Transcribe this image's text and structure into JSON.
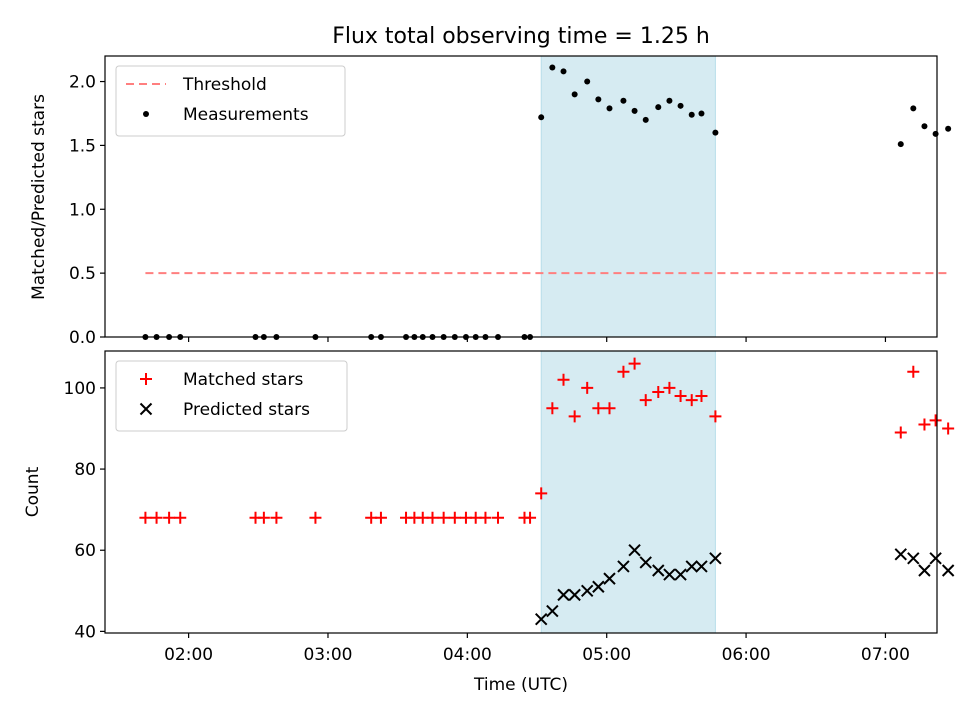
{
  "chart_data": [
    {
      "type": "scatter",
      "title": "Flux total observing time = 1.25 h",
      "xlabel": "",
      "ylabel": "Matched/Predicted stars",
      "xlim": [
        1.4,
        7.37
      ],
      "ylim": [
        0.0,
        2.2
      ],
      "yticks": [
        0.0,
        0.5,
        1.0,
        1.5,
        2.0
      ],
      "ytick_labels": [
        "0.0",
        "0.5",
        "1.0",
        "1.5",
        "2.0"
      ],
      "xticks": [
        2,
        3,
        4,
        5,
        6,
        7
      ],
      "show_xtick_labels": false,
      "grid": false,
      "legend_position": "top-left",
      "highlight_band": {
        "x_start": 4.53,
        "x_end": 5.78,
        "color": "#add8e6"
      },
      "series": [
        {
          "name": "Threshold",
          "kind": "dashed-line",
          "color": "#ff7f7f",
          "x": [
            1.69,
            7.47
          ],
          "y": [
            0.5,
            0.5
          ]
        },
        {
          "name": "Measurements",
          "kind": "dot",
          "color": "#000000",
          "x": [
            1.69,
            1.77,
            1.86,
            1.94,
            2.48,
            2.54,
            2.63,
            2.91,
            3.31,
            3.38,
            3.56,
            3.62,
            3.68,
            3.75,
            3.83,
            3.91,
            3.99,
            4.06,
            4.13,
            4.22,
            4.41,
            4.45,
            4.53,
            4.61,
            4.69,
            4.77,
            4.86,
            4.94,
            5.02,
            5.12,
            5.2,
            5.28,
            5.37,
            5.45,
            5.53,
            5.61,
            5.68,
            5.78,
            7.11,
            7.2,
            7.28,
            7.36,
            7.45
          ],
          "y": [
            0,
            0,
            0,
            0,
            0,
            0,
            0,
            0,
            0,
            0,
            0,
            0,
            0,
            0,
            0,
            0,
            0,
            0,
            0,
            0,
            0,
            0,
            1.72,
            2.11,
            2.08,
            1.9,
            2.0,
            1.86,
            1.79,
            1.85,
            1.77,
            1.7,
            1.8,
            1.85,
            1.81,
            1.74,
            1.75,
            1.6,
            1.51,
            1.79,
            1.65,
            1.59,
            1.63
          ]
        }
      ]
    },
    {
      "type": "scatter",
      "title": "",
      "xlabel": "Time (UTC)",
      "ylabel": "Count",
      "xlim": [
        1.4,
        7.37
      ],
      "ylim": [
        39.6,
        109.1
      ],
      "yticks": [
        40,
        60,
        80,
        100
      ],
      "ytick_labels": [
        "40",
        "60",
        "80",
        "100"
      ],
      "xticks": [
        2,
        3,
        4,
        5,
        6,
        7
      ],
      "xtick_labels": [
        "02:00",
        "03:00",
        "04:00",
        "05:00",
        "06:00",
        "07:00"
      ],
      "grid": false,
      "legend_position": "top-left",
      "highlight_band": {
        "x_start": 4.53,
        "x_end": 5.78,
        "color": "#add8e6"
      },
      "series": [
        {
          "name": "Matched stars",
          "kind": "plus",
          "color": "#ff0000",
          "x": [
            1.69,
            1.77,
            1.86,
            1.94,
            2.48,
            2.54,
            2.63,
            2.91,
            3.31,
            3.38,
            3.56,
            3.62,
            3.68,
            3.75,
            3.83,
            3.91,
            3.99,
            4.06,
            4.13,
            4.22,
            4.41,
            4.45,
            4.53,
            4.61,
            4.69,
            4.77,
            4.86,
            4.94,
            5.02,
            5.12,
            5.2,
            5.28,
            5.37,
            5.45,
            5.53,
            5.61,
            5.68,
            5.78,
            7.11,
            7.2,
            7.28,
            7.36,
            7.45
          ],
          "y": [
            68,
            68,
            68,
            68,
            68,
            68,
            68,
            68,
            68,
            68,
            68,
            68,
            68,
            68,
            68,
            68,
            68,
            68,
            68,
            68,
            68,
            68,
            74,
            95,
            102,
            93,
            100,
            95,
            95,
            104,
            106,
            97,
            99,
            100,
            98,
            97,
            98,
            93,
            89,
            104,
            91,
            92,
            90
          ]
        },
        {
          "name": "Predicted stars",
          "kind": "x",
          "color": "#000000",
          "x": [
            4.53,
            4.61,
            4.69,
            4.77,
            4.86,
            4.94,
            5.02,
            5.12,
            5.2,
            5.28,
            5.37,
            5.45,
            5.53,
            5.61,
            5.68,
            5.78,
            7.11,
            7.2,
            7.28,
            7.36,
            7.45
          ],
          "y": [
            43,
            45,
            49,
            49,
            50,
            51,
            53,
            56,
            60,
            57,
            55,
            54,
            54,
            56,
            56,
            58,
            59,
            58,
            55,
            58,
            55
          ]
        }
      ]
    }
  ]
}
